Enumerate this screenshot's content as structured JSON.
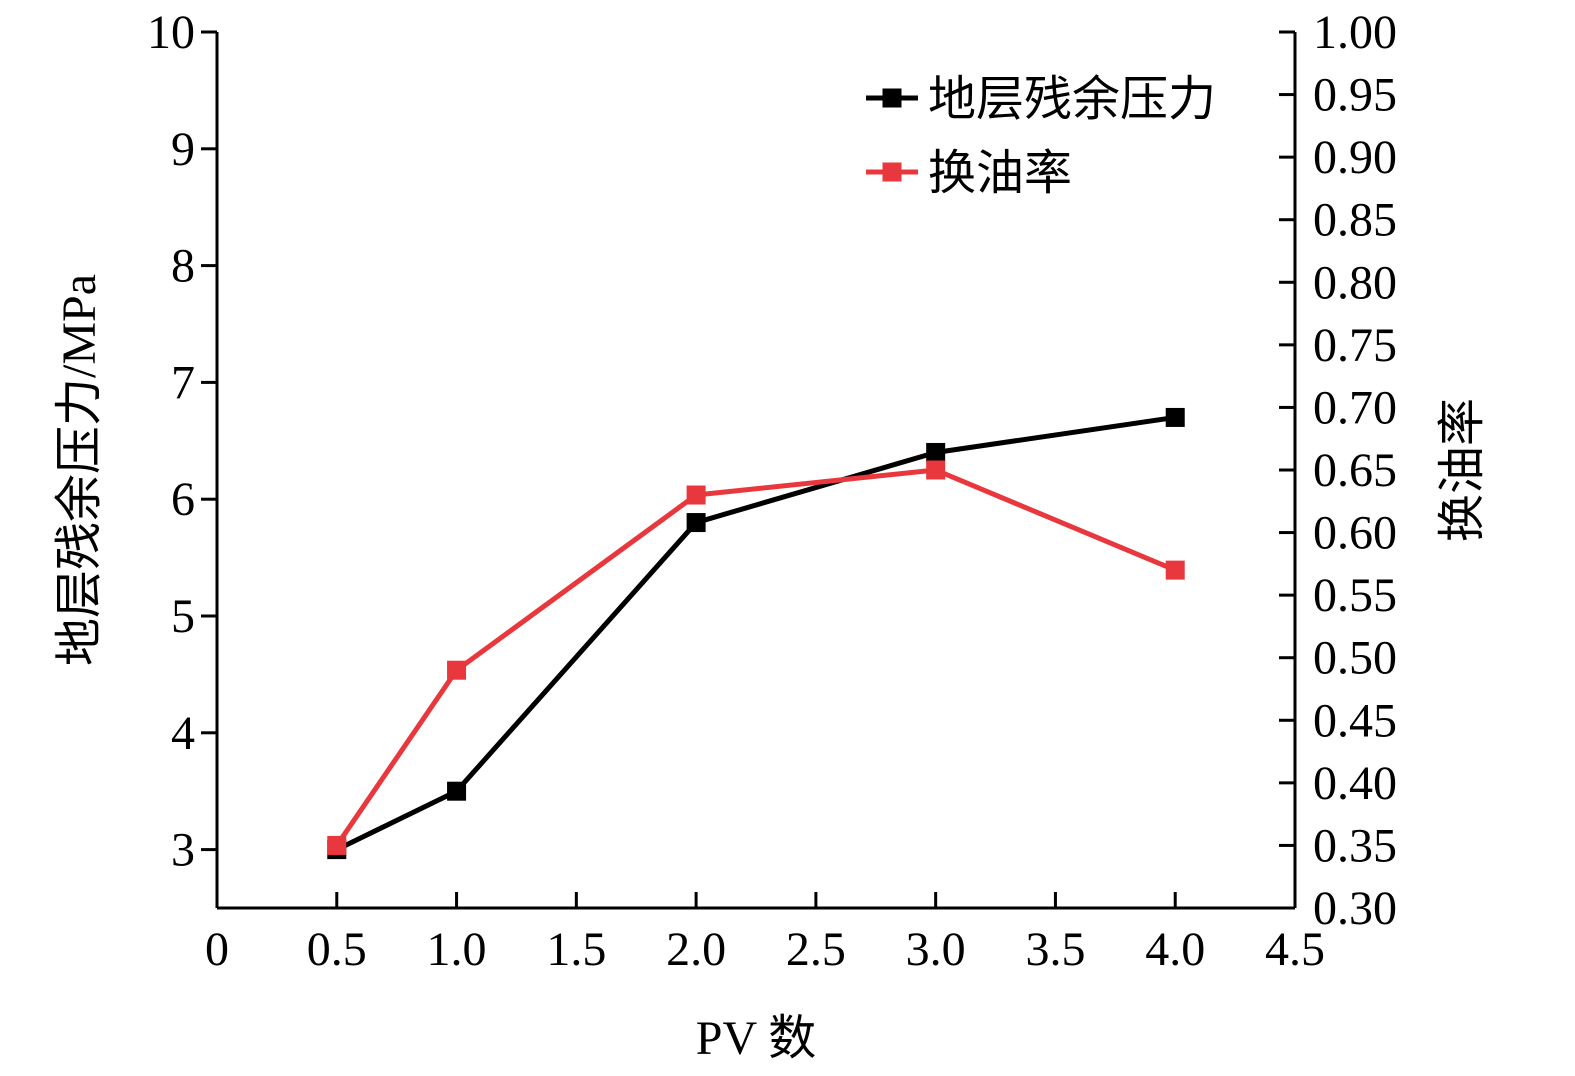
{
  "chart_data": {
    "type": "line",
    "title": "",
    "xlabel": "PV 数",
    "ylabel_left": "地层残余压力/MPa",
    "ylabel_right": "换油率",
    "xlim": [
      0,
      4.5
    ],
    "ylim_left": [
      2.5,
      10
    ],
    "ylim_right": [
      0.3,
      1.0
    ],
    "x_ticks": [
      {
        "value": 0,
        "label": "0"
      },
      {
        "value": 0.5,
        "label": "0.5"
      },
      {
        "value": 1.0,
        "label": "1.0"
      },
      {
        "value": 1.5,
        "label": "1.5"
      },
      {
        "value": 2.0,
        "label": "2.0"
      },
      {
        "value": 2.5,
        "label": "2.5"
      },
      {
        "value": 3.0,
        "label": "3.0"
      },
      {
        "value": 3.5,
        "label": "3.5"
      },
      {
        "value": 4.0,
        "label": "4.0"
      },
      {
        "value": 4.5,
        "label": "4.5"
      }
    ],
    "y_left_ticks": [
      {
        "value": 3,
        "label": "3"
      },
      {
        "value": 4,
        "label": "4"
      },
      {
        "value": 5,
        "label": "5"
      },
      {
        "value": 6,
        "label": "6"
      },
      {
        "value": 7,
        "label": "7"
      },
      {
        "value": 8,
        "label": "8"
      },
      {
        "value": 9,
        "label": "9"
      },
      {
        "value": 10,
        "label": "10"
      }
    ],
    "y_right_ticks": [
      {
        "value": 0.3,
        "label": "0.30"
      },
      {
        "value": 0.35,
        "label": "0.35"
      },
      {
        "value": 0.4,
        "label": "0.40"
      },
      {
        "value": 0.45,
        "label": "0.45"
      },
      {
        "value": 0.5,
        "label": "0.50"
      },
      {
        "value": 0.55,
        "label": "0.55"
      },
      {
        "value": 0.6,
        "label": "0.60"
      },
      {
        "value": 0.65,
        "label": "0.65"
      },
      {
        "value": 0.7,
        "label": "0.70"
      },
      {
        "value": 0.75,
        "label": "0.75"
      },
      {
        "value": 0.8,
        "label": "0.80"
      },
      {
        "value": 0.85,
        "label": "0.85"
      },
      {
        "value": 0.9,
        "label": "0.90"
      },
      {
        "value": 0.95,
        "label": "0.95"
      },
      {
        "value": 1.0,
        "label": "1.00"
      }
    ],
    "grid": false,
    "legend_position": "top-right",
    "series": [
      {
        "name": "地层残余压力",
        "axis": "left",
        "color": "#000000",
        "marker": "square",
        "x": [
          0.5,
          1.0,
          2.0,
          3.0,
          4.0
        ],
        "y": [
          3.0,
          3.5,
          5.8,
          6.4,
          6.7
        ]
      },
      {
        "name": "换油率",
        "axis": "right",
        "color": "#e8383d",
        "marker": "square",
        "x": [
          0.5,
          1.0,
          2.0,
          3.0,
          4.0
        ],
        "y": [
          0.35,
          0.49,
          0.63,
          0.65,
          0.57
        ]
      }
    ]
  }
}
